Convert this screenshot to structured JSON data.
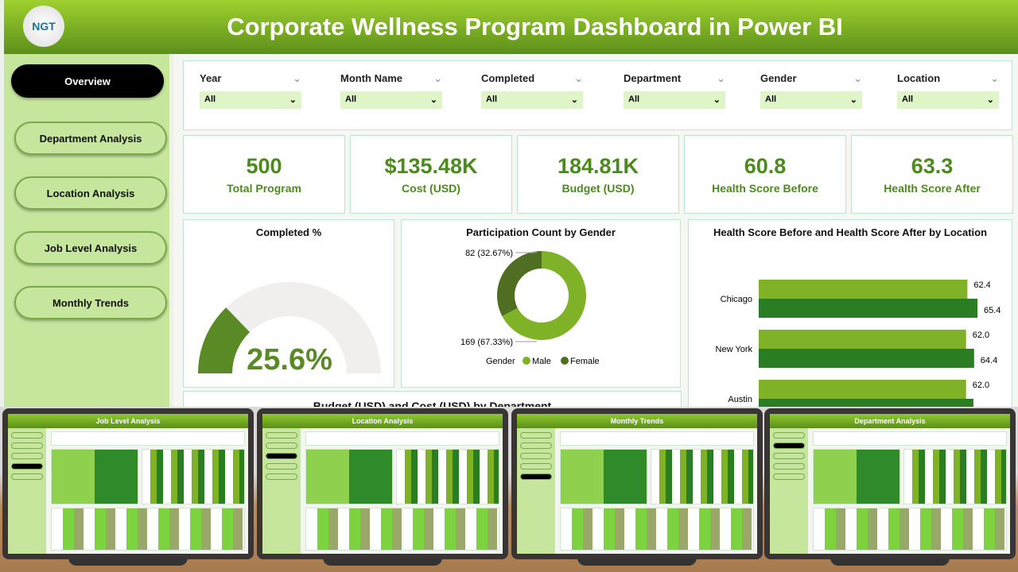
{
  "header": {
    "title": "Corporate Wellness Program Dashboard in Power BI",
    "logo": "NGT"
  },
  "nav": [
    {
      "label": "Overview",
      "active": true
    },
    {
      "label": "Department Analysis"
    },
    {
      "label": "Location Analysis"
    },
    {
      "label": "Job Level Analysis"
    },
    {
      "label": "Monthly Trends"
    }
  ],
  "filters": [
    {
      "label": "Year",
      "value": "All"
    },
    {
      "label": "Month Name",
      "value": "All"
    },
    {
      "label": "Completed",
      "value": "All"
    },
    {
      "label": "Department",
      "value": "All"
    },
    {
      "label": "Gender",
      "value": "All"
    },
    {
      "label": "Location",
      "value": "All"
    }
  ],
  "kpis": [
    {
      "value": "500",
      "label": "Total Program"
    },
    {
      "value": "$135.48K",
      "label": "Cost (USD)"
    },
    {
      "value": "184.81K",
      "label": "Budget (USD)"
    },
    {
      "value": "60.8",
      "label": "Health Score Before"
    },
    {
      "value": "63.3",
      "label": "Health Score After"
    }
  ],
  "completed": {
    "title": "Completed %",
    "value": "25.6%",
    "fraction": 0.256
  },
  "chart_data": [
    {
      "type": "pie",
      "title": "Participation Count by Gender",
      "legend_title": "Gender",
      "categories": [
        "Male",
        "Female"
      ],
      "values": [
        169,
        82
      ],
      "labels": [
        "169 (67.33%)",
        "82 (32.67%)"
      ],
      "colors": [
        "#7fb227",
        "#4f6e21"
      ]
    },
    {
      "type": "bar",
      "orientation": "horizontal",
      "title": "Health Score Before and Health Score After by Location",
      "categories": [
        "Chicago",
        "New York",
        "Austin"
      ],
      "series": [
        {
          "name": "Health Score Before",
          "values": [
            62.4,
            62.0,
            62.0
          ],
          "color": "#7fb227"
        },
        {
          "name": "Health Score After",
          "values": [
            65.4,
            64.4,
            64.2
          ],
          "color": "#2a7d22"
        }
      ]
    }
  ],
  "budget_title": "Budget (USD) and Cost (USD) by Department",
  "thumbnails": [
    {
      "title": "Job Level Analysis",
      "active": 3
    },
    {
      "title": "Location Analysis",
      "active": 2
    },
    {
      "title": "Monthly Trends",
      "active": 4
    },
    {
      "title": "Department Analysis",
      "active": 1
    }
  ]
}
